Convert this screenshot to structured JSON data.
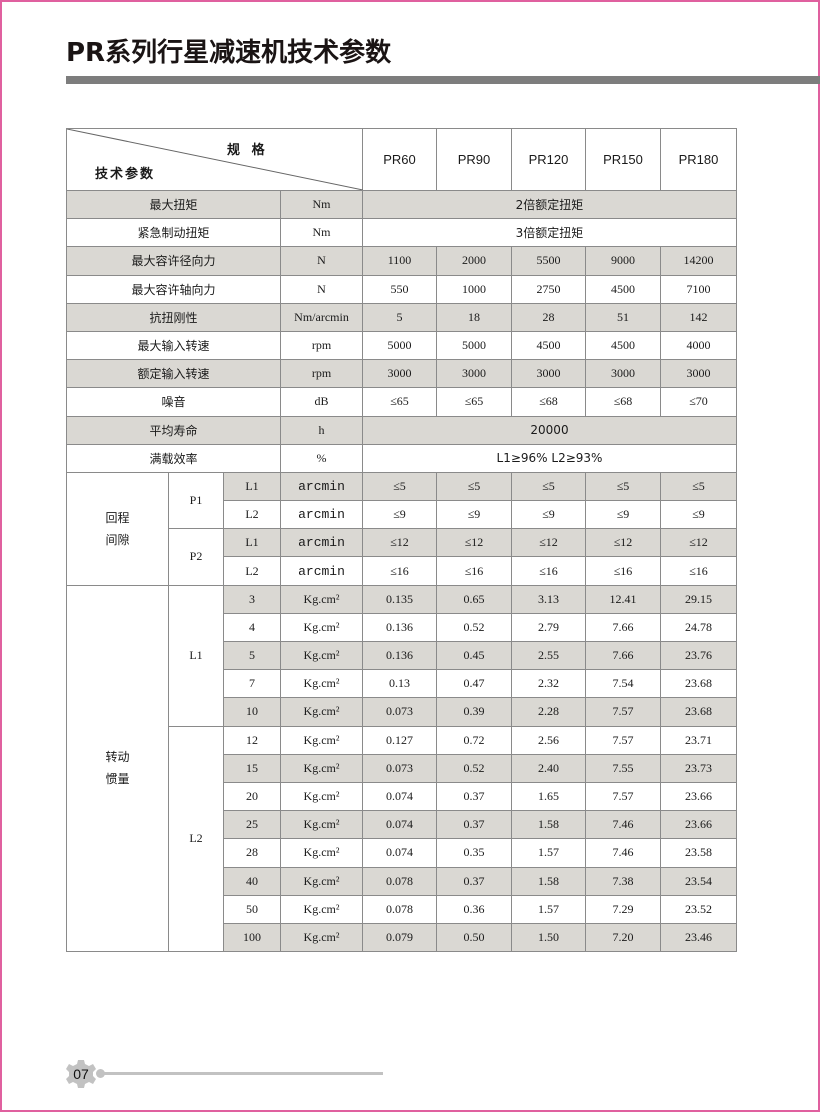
{
  "title": "PR系列行星减速机技术参数",
  "page_number": "07",
  "colors": {
    "shade": "#dad8d3",
    "title_bar": "#7d7d7d",
    "frame": "#e0609f"
  },
  "header": {
    "spec_label": "规 格",
    "param_label": "技术参数",
    "models": [
      "PR60",
      "PR90",
      "PR120",
      "PR150",
      "PR180"
    ]
  },
  "general_rows": [
    {
      "label": "最大扭矩",
      "unit": "Nm",
      "merged": "2倍额定扭矩"
    },
    {
      "label": "紧急制动扭矩",
      "unit": "Nm",
      "merged": "3倍额定扭矩"
    },
    {
      "label": "最大容许径向力",
      "unit": "N",
      "values": [
        "1100",
        "2000",
        "5500",
        "9000",
        "14200"
      ]
    },
    {
      "label": "最大容许轴向力",
      "unit": "N",
      "values": [
        "550",
        "1000",
        "2750",
        "4500",
        "7100"
      ]
    },
    {
      "label": "抗扭刚性",
      "unit": "Nm/arcmin",
      "values": [
        "5",
        "18",
        "28",
        "51",
        "142"
      ]
    },
    {
      "label": "最大输入转速",
      "unit": "rpm",
      "values": [
        "5000",
        "5000",
        "4500",
        "4500",
        "4000"
      ]
    },
    {
      "label": "额定输入转速",
      "unit": "rpm",
      "values": [
        "3000",
        "3000",
        "3000",
        "3000",
        "3000"
      ]
    },
    {
      "label": "噪音",
      "unit": "dB",
      "values": [
        "≤65",
        "≤65",
        "≤68",
        "≤68",
        "≤70"
      ]
    },
    {
      "label": "平均寿命",
      "unit": "h",
      "merged": "20000"
    },
    {
      "label": "满载效率",
      "unit": "%",
      "merged": "L1≥96%   L2≥93%"
    }
  ],
  "backlash": {
    "label_lines": [
      "回程",
      "间隙"
    ],
    "groups": [
      {
        "name": "P1",
        "rows": [
          {
            "stage": "L1",
            "unit": "arcmin",
            "values": [
              "≤5",
              "≤5",
              "≤5",
              "≤5",
              "≤5"
            ]
          },
          {
            "stage": "L2",
            "unit": "arcmin",
            "values": [
              "≤9",
              "≤9",
              "≤9",
              "≤9",
              "≤9"
            ]
          }
        ]
      },
      {
        "name": "P2",
        "rows": [
          {
            "stage": "L1",
            "unit": "arcmin",
            "values": [
              "≤12",
              "≤12",
              "≤12",
              "≤12",
              "≤12"
            ]
          },
          {
            "stage": "L2",
            "unit": "arcmin",
            "values": [
              "≤16",
              "≤16",
              "≤16",
              "≤16",
              "≤16"
            ]
          }
        ]
      }
    ]
  },
  "inertia": {
    "label_lines": [
      "转动",
      "惯量"
    ],
    "groups": [
      {
        "name": "L1",
        "rows": [
          {
            "stage": "3",
            "unit": "Kg.cm²",
            "values": [
              "0.135",
              "0.65",
              "3.13",
              "12.41",
              "29.15"
            ]
          },
          {
            "stage": "4",
            "unit": "Kg.cm²",
            "values": [
              "0.136",
              "0.52",
              "2.79",
              "7.66",
              "24.78"
            ]
          },
          {
            "stage": "5",
            "unit": "Kg.cm²",
            "values": [
              "0.136",
              "0.45",
              "2.55",
              "7.66",
              "23.76"
            ]
          },
          {
            "stage": "7",
            "unit": "Kg.cm²",
            "values": [
              "0.13",
              "0.47",
              "2.32",
              "7.54",
              "23.68"
            ]
          },
          {
            "stage": "10",
            "unit": "Kg.cm²",
            "values": [
              "0.073",
              "0.39",
              "2.28",
              "7.57",
              "23.68"
            ]
          }
        ]
      },
      {
        "name": "L2",
        "rows": [
          {
            "stage": "12",
            "unit": "Kg.cm²",
            "values": [
              "0.127",
              "0.72",
              "2.56",
              "7.57",
              "23.71"
            ]
          },
          {
            "stage": "15",
            "unit": "Kg.cm²",
            "values": [
              "0.073",
              "0.52",
              "2.40",
              "7.55",
              "23.73"
            ]
          },
          {
            "stage": "20",
            "unit": "Kg.cm²",
            "values": [
              "0.074",
              "0.37",
              "1.65",
              "7.57",
              "23.66"
            ]
          },
          {
            "stage": "25",
            "unit": "Kg.cm²",
            "values": [
              "0.074",
              "0.37",
              "1.58",
              "7.46",
              "23.66"
            ]
          },
          {
            "stage": "28",
            "unit": "Kg.cm²",
            "values": [
              "0.074",
              "0.35",
              "1.57",
              "7.46",
              "23.58"
            ]
          },
          {
            "stage": "40",
            "unit": "Kg.cm²",
            "values": [
              "0.078",
              "0.37",
              "1.58",
              "7.38",
              "23.54"
            ]
          },
          {
            "stage": "50",
            "unit": "Kg.cm²",
            "values": [
              "0.078",
              "0.36",
              "1.57",
              "7.29",
              "23.52"
            ]
          },
          {
            "stage": "100",
            "unit": "Kg.cm²",
            "values": [
              "0.079",
              "0.50",
              "1.50",
              "7.20",
              "23.46"
            ]
          }
        ]
      }
    ]
  }
}
